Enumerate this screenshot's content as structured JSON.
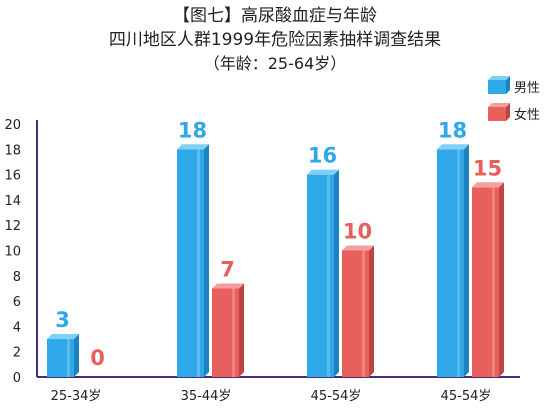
{
  "title": {
    "line1": "【图七】高尿酸血症与年龄",
    "line2": "四川地区人群1999年危险因素抽样调查结果",
    "line3": "（年龄：25-64岁）"
  },
  "colors": {
    "male": "#2EA8E8",
    "male_side": "#1C82C0",
    "male_top": "#7FD0F7",
    "female": "#E8605C",
    "female_side": "#BE4441",
    "female_top": "#F3A09C",
    "axis": "#4B2A7B"
  },
  "chart_data": {
    "type": "bar",
    "categories": [
      "25-34岁",
      "35-44岁",
      "45-54岁",
      "45-54岁"
    ],
    "series": [
      {
        "name": "男性",
        "values": [
          3,
          18,
          16,
          18
        ]
      },
      {
        "name": "女性",
        "values": [
          0,
          7,
          10,
          15
        ]
      }
    ],
    "ylim": [
      0,
      20
    ],
    "yticks": [
      0,
      2,
      4,
      6,
      8,
      10,
      12,
      14,
      16,
      18,
      20
    ],
    "legend_position": "top-right",
    "grid": false,
    "style": "3d"
  }
}
